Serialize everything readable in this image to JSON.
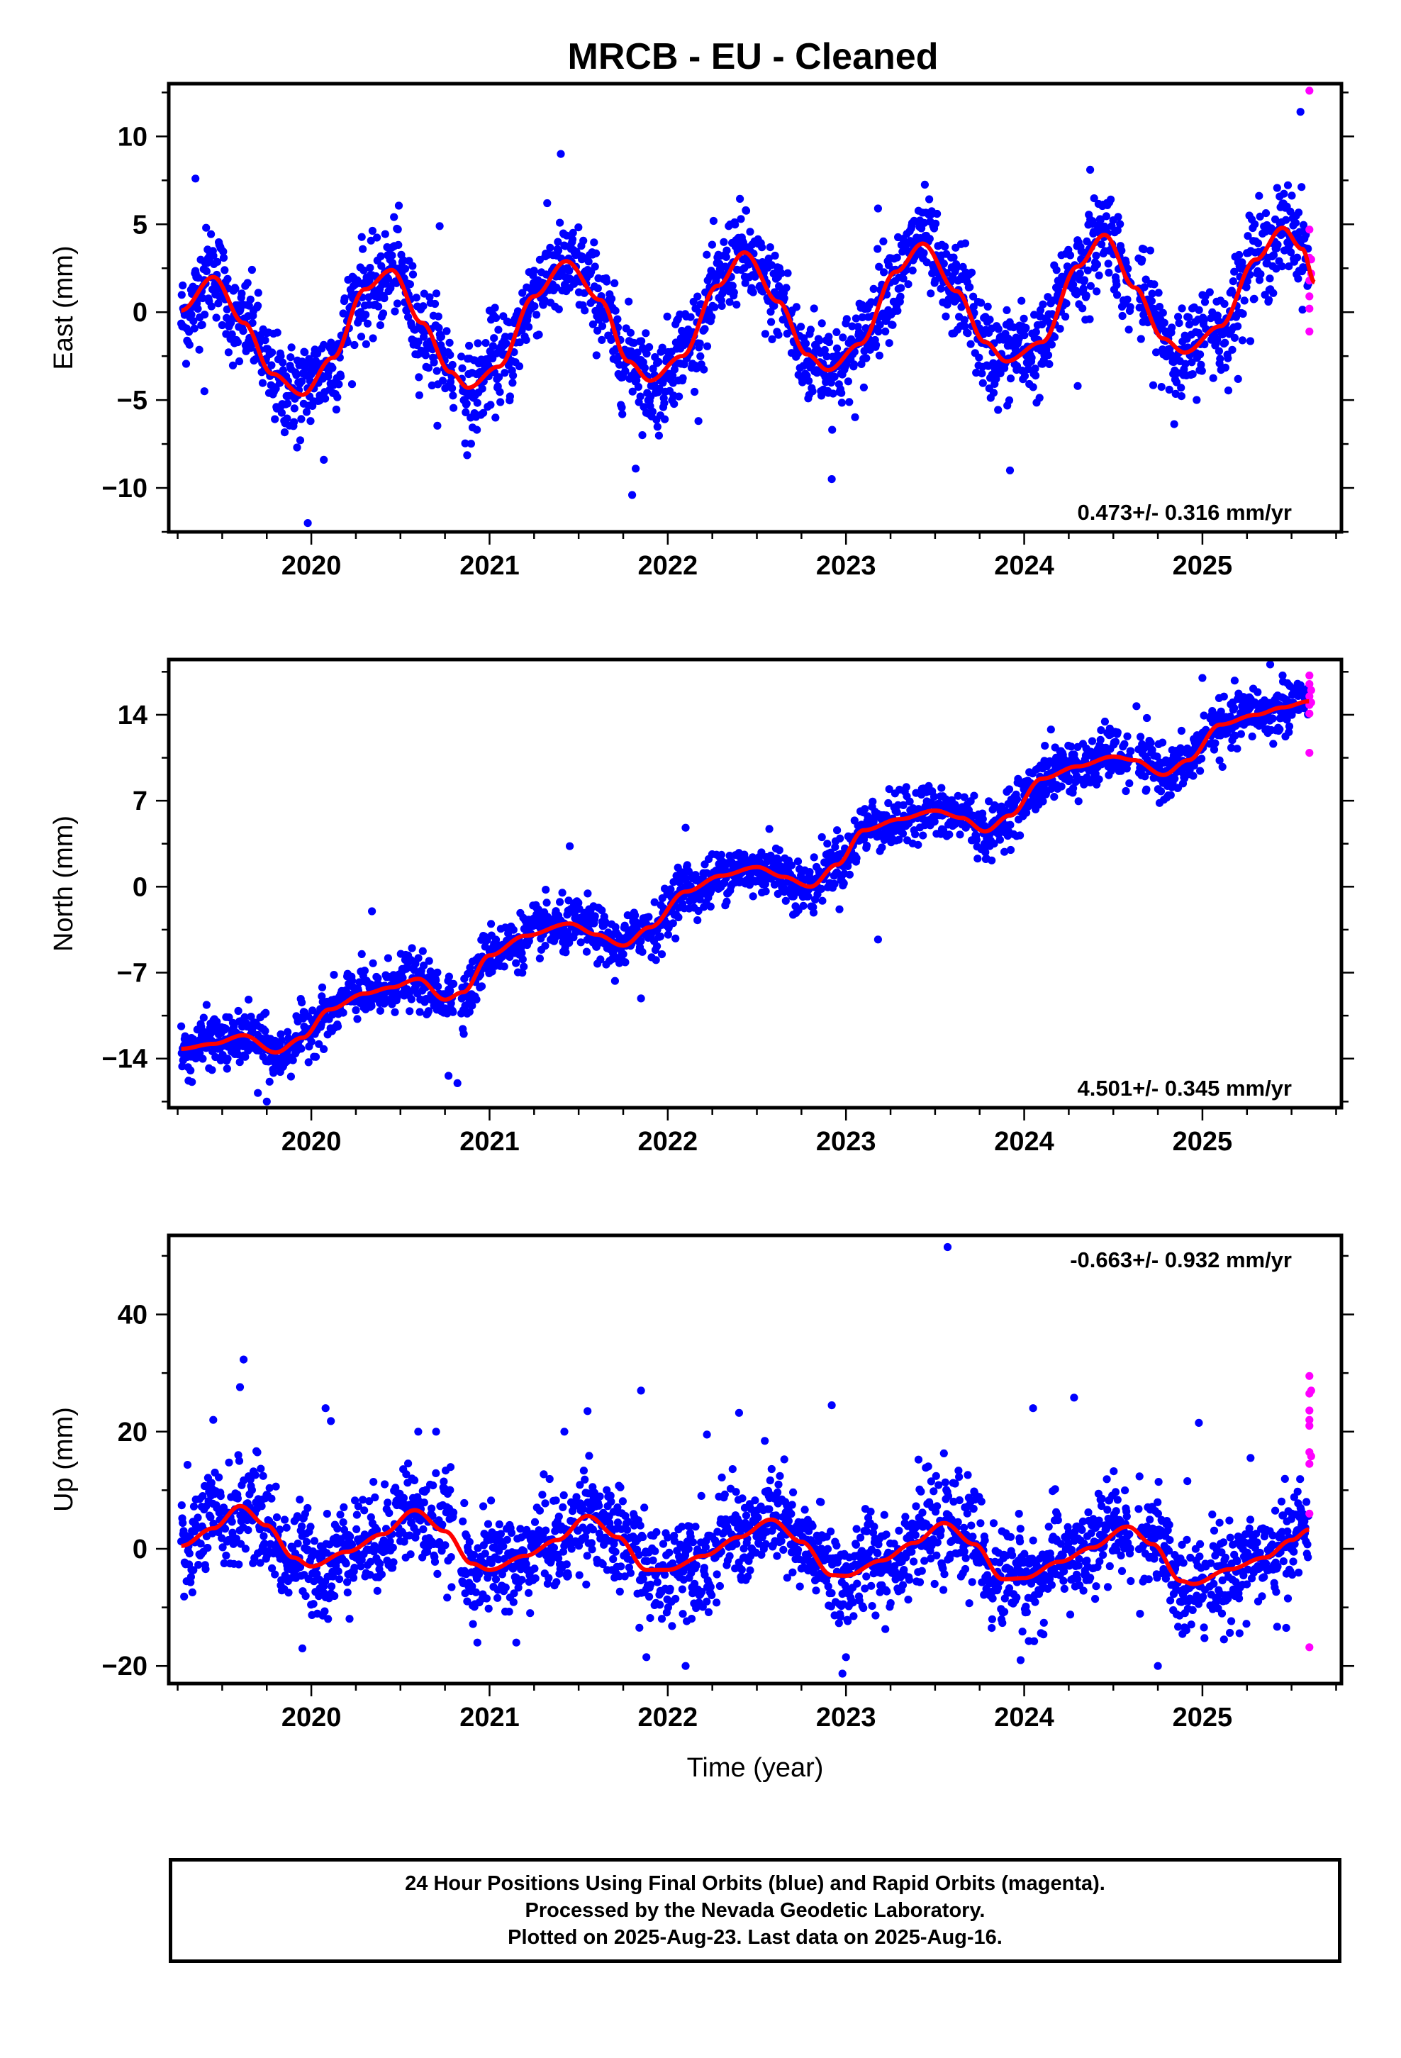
{
  "title": "MRCB  - EU - Cleaned",
  "colors": {
    "final": "#0000ff",
    "rapid": "#ff00ff",
    "model": "#ff0000"
  },
  "footer": {
    "line1": "24 Hour Positions Using Final Orbits (blue) and Rapid Orbits (magenta).",
    "line2": "Processed by the Nevada Geodetic Laboratory.",
    "line3": "Plotted on 2025-Aug-23. Last data on 2025-Aug-16."
  },
  "chart_data": [
    {
      "type": "scatter",
      "name": "east",
      "ylabel": "East (mm)",
      "xlabel": "",
      "xlim": [
        2019.2,
        2025.78
      ],
      "ylim": [
        -12.5,
        13.0
      ],
      "yticks": [
        -10,
        -5,
        0,
        5,
        10
      ],
      "yticklabels": [
        "−10",
        "−5",
        "0",
        "5",
        "10"
      ],
      "xticks": [
        2020,
        2021,
        2022,
        2023,
        2024,
        2025
      ],
      "xticklabels": [
        "2020",
        "2021",
        "2022",
        "2023",
        "2024",
        "2025"
      ],
      "rate_text": "0.473+/- 0.316 mm/yr",
      "rate_position": "bottom-right",
      "model_knots": [
        [
          2019.27,
          0.1
        ],
        [
          2019.45,
          2.0
        ],
        [
          2019.62,
          -0.6
        ],
        [
          2019.78,
          -3.5
        ],
        [
          2019.95,
          -4.7
        ],
        [
          2020.12,
          -2.6
        ],
        [
          2020.3,
          1.3
        ],
        [
          2020.45,
          2.4
        ],
        [
          2020.62,
          -0.6
        ],
        [
          2020.78,
          -3.4
        ],
        [
          2020.88,
          -4.3
        ],
        [
          2021.05,
          -3.1
        ],
        [
          2021.25,
          0.9
        ],
        [
          2021.43,
          2.9
        ],
        [
          2021.62,
          0.7
        ],
        [
          2021.78,
          -2.8
        ],
        [
          2021.9,
          -3.9
        ],
        [
          2022.08,
          -2.5
        ],
        [
          2022.28,
          1.5
        ],
        [
          2022.43,
          3.4
        ],
        [
          2022.62,
          0.6
        ],
        [
          2022.78,
          -2.4
        ],
        [
          2022.9,
          -3.3
        ],
        [
          2023.08,
          -1.8
        ],
        [
          2023.28,
          2.3
        ],
        [
          2023.43,
          3.9
        ],
        [
          2023.62,
          1.2
        ],
        [
          2023.78,
          -1.7
        ],
        [
          2023.9,
          -2.8
        ],
        [
          2024.1,
          -1.7
        ],
        [
          2024.3,
          2.6
        ],
        [
          2024.45,
          4.4
        ],
        [
          2024.62,
          1.4
        ],
        [
          2024.78,
          -1.5
        ],
        [
          2024.9,
          -2.3
        ],
        [
          2025.1,
          -0.8
        ],
        [
          2025.3,
          3.0
        ],
        [
          2025.45,
          4.8
        ],
        [
          2025.56,
          3.6
        ],
        [
          2025.63,
          1.7
        ]
      ],
      "scatter_sigma": 1.3,
      "outliers_final": [
        [
          2019.35,
          7.6
        ],
        [
          2019.4,
          -4.5
        ],
        [
          2019.92,
          -7.7
        ],
        [
          2019.98,
          -12.0
        ],
        [
          2020.07,
          -8.4
        ],
        [
          2020.72,
          4.9
        ],
        [
          2021.4,
          9.0
        ],
        [
          2021.8,
          -10.4
        ],
        [
          2021.82,
          -8.9
        ],
        [
          2022.92,
          -9.5
        ],
        [
          2023.18,
          5.9
        ],
        [
          2023.92,
          -9.0
        ],
        [
          2024.3,
          -4.2
        ],
        [
          2024.37,
          8.1
        ],
        [
          2025.2,
          -3.8
        ],
        [
          2025.55,
          11.4
        ]
      ],
      "rapid_points": [
        [
          2025.6,
          12.6
        ],
        [
          2025.6,
          4.7
        ],
        [
          2025.6,
          3.1
        ],
        [
          2025.6,
          1.8
        ],
        [
          2025.6,
          0.9
        ],
        [
          2025.6,
          0.2
        ],
        [
          2025.6,
          -1.1
        ],
        [
          2025.61,
          3.0
        ],
        [
          2025.61,
          2.2
        ]
      ]
    },
    {
      "type": "scatter",
      "name": "north",
      "ylabel": "North (mm)",
      "xlabel": "",
      "xlim": [
        2019.2,
        2025.78
      ],
      "ylim": [
        -18.0,
        18.5
      ],
      "yticks": [
        -14,
        -7,
        0,
        7,
        14
      ],
      "yticklabels": [
        "−14",
        "−7",
        "0",
        "7",
        "14"
      ],
      "xticks": [
        2020,
        2021,
        2022,
        2023,
        2024,
        2025
      ],
      "xticklabels": [
        "2020",
        "2021",
        "2022",
        "2023",
        "2024",
        "2025"
      ],
      "rate_text": "4.501+/- 0.345 mm/yr",
      "rate_position": "bottom-right",
      "model_knots": [
        [
          2019.27,
          -13.2
        ],
        [
          2019.45,
          -12.8
        ],
        [
          2019.62,
          -12.1
        ],
        [
          2019.8,
          -13.5
        ],
        [
          2019.95,
          -12.3
        ],
        [
          2020.1,
          -10.0
        ],
        [
          2020.3,
          -8.7
        ],
        [
          2020.45,
          -8.2
        ],
        [
          2020.6,
          -7.5
        ],
        [
          2020.75,
          -9.2
        ],
        [
          2020.85,
          -8.6
        ],
        [
          2021.0,
          -5.6
        ],
        [
          2021.2,
          -4.0
        ],
        [
          2021.45,
          -3.0
        ],
        [
          2021.6,
          -3.9
        ],
        [
          2021.75,
          -4.8
        ],
        [
          2021.9,
          -3.3
        ],
        [
          2022.1,
          -0.4
        ],
        [
          2022.3,
          0.9
        ],
        [
          2022.5,
          1.6
        ],
        [
          2022.65,
          0.8
        ],
        [
          2022.8,
          0.0
        ],
        [
          2022.95,
          1.8
        ],
        [
          2023.1,
          4.6
        ],
        [
          2023.3,
          5.5
        ],
        [
          2023.5,
          6.2
        ],
        [
          2023.65,
          5.6
        ],
        [
          2023.78,
          4.5
        ],
        [
          2023.92,
          5.8
        ],
        [
          2024.1,
          8.8
        ],
        [
          2024.3,
          9.8
        ],
        [
          2024.5,
          10.6
        ],
        [
          2024.62,
          10.3
        ],
        [
          2024.78,
          9.1
        ],
        [
          2024.92,
          10.3
        ],
        [
          2025.1,
          13.2
        ],
        [
          2025.3,
          14.0
        ],
        [
          2025.45,
          14.6
        ],
        [
          2025.6,
          15.1
        ]
      ],
      "scatter_sigma": 1.05,
      "outliers_final": [
        [
          2019.7,
          -16.8
        ],
        [
          2019.75,
          -17.5
        ],
        [
          2020.34,
          -2.0
        ],
        [
          2020.77,
          -15.4
        ],
        [
          2020.82,
          -16.0
        ],
        [
          2021.45,
          3.3
        ],
        [
          2021.85,
          -9.1
        ],
        [
          2022.1,
          4.8
        ],
        [
          2022.57,
          4.7
        ],
        [
          2022.95,
          4.6
        ],
        [
          2023.18,
          -4.3
        ],
        [
          2023.3,
          7.9
        ],
        [
          2024.15,
          12.8
        ],
        [
          2024.63,
          14.7
        ],
        [
          2025.0,
          17.0
        ],
        [
          2025.38,
          18.1
        ],
        [
          2025.45,
          17.2
        ]
      ],
      "rapid_points": [
        [
          2025.6,
          17.2
        ],
        [
          2025.6,
          16.5
        ],
        [
          2025.6,
          15.5
        ],
        [
          2025.6,
          14.8
        ],
        [
          2025.6,
          14.1
        ],
        [
          2025.6,
          10.9
        ],
        [
          2025.61,
          16.0
        ],
        [
          2025.61,
          15.0
        ]
      ]
    },
    {
      "type": "scatter",
      "name": "up",
      "ylabel": "Up (mm)",
      "xlabel": "Time (year)",
      "xlim": [
        2019.2,
        2025.78
      ],
      "ylim": [
        -23.0,
        53.5
      ],
      "yticks": [
        -20,
        0,
        20,
        40
      ],
      "yticklabels": [
        "−20",
        "0",
        "20",
        "40"
      ],
      "xticks": [
        2020,
        2021,
        2022,
        2023,
        2024,
        2025
      ],
      "xticklabels": [
        "2020",
        "2021",
        "2022",
        "2023",
        "2024",
        "2025"
      ],
      "rate_text": "-0.663+/- 0.932 mm/yr",
      "rate_position": "top-right",
      "model_knots": [
        [
          2019.27,
          0.5
        ],
        [
          2019.45,
          3.5
        ],
        [
          2019.6,
          7.3
        ],
        [
          2019.75,
          4.0
        ],
        [
          2019.9,
          -1.5
        ],
        [
          2020.0,
          -3.0
        ],
        [
          2020.2,
          -0.5
        ],
        [
          2020.4,
          2.5
        ],
        [
          2020.58,
          6.6
        ],
        [
          2020.75,
          3.0
        ],
        [
          2020.9,
          -2.5
        ],
        [
          2021.0,
          -3.6
        ],
        [
          2021.2,
          -1.2
        ],
        [
          2021.38,
          1.5
        ],
        [
          2021.55,
          5.6
        ],
        [
          2021.72,
          2.0
        ],
        [
          2021.88,
          -3.6
        ],
        [
          2022.0,
          -3.6
        ],
        [
          2022.2,
          -1.2
        ],
        [
          2022.4,
          2.0
        ],
        [
          2022.58,
          5.0
        ],
        [
          2022.75,
          1.2
        ],
        [
          2022.92,
          -4.5
        ],
        [
          2023.0,
          -4.6
        ],
        [
          2023.2,
          -2.0
        ],
        [
          2023.38,
          1.0
        ],
        [
          2023.55,
          4.4
        ],
        [
          2023.72,
          0.8
        ],
        [
          2023.88,
          -5.2
        ],
        [
          2024.0,
          -5.0
        ],
        [
          2024.2,
          -2.2
        ],
        [
          2024.38,
          0.2
        ],
        [
          2024.58,
          3.8
        ],
        [
          2024.72,
          0.8
        ],
        [
          2024.88,
          -5.5
        ],
        [
          2024.95,
          -6.0
        ],
        [
          2025.15,
          -3.5
        ],
        [
          2025.35,
          -1.5
        ],
        [
          2025.5,
          1.5
        ],
        [
          2025.6,
          3.3
        ]
      ],
      "scatter_sigma": 4.2,
      "outliers_final": [
        [
          2019.45,
          22.0
        ],
        [
          2019.62,
          32.3
        ],
        [
          2019.6,
          27.6
        ],
        [
          2019.95,
          -17.0
        ],
        [
          2020.08,
          24.0
        ],
        [
          2020.11,
          21.8
        ],
        [
          2020.6,
          20.0
        ],
        [
          2020.7,
          20.0
        ],
        [
          2021.15,
          -16.0
        ],
        [
          2021.42,
          20.0
        ],
        [
          2021.55,
          23.5
        ],
        [
          2021.85,
          27.0
        ],
        [
          2021.88,
          -18.5
        ],
        [
          2022.1,
          -20.0
        ],
        [
          2022.22,
          19.5
        ],
        [
          2022.4,
          23.2
        ],
        [
          2022.92,
          24.5
        ],
        [
          2022.98,
          -21.3
        ],
        [
          2023.0,
          -18.5
        ],
        [
          2023.57,
          51.5
        ],
        [
          2023.98,
          -19.0
        ],
        [
          2024.05,
          24.0
        ],
        [
          2024.28,
          25.8
        ],
        [
          2024.75,
          -20.0
        ],
        [
          2024.98,
          21.5
        ],
        [
          2025.27,
          15.5
        ],
        [
          2025.47,
          -13.5
        ]
      ],
      "rapid_points": [
        [
          2025.6,
          29.5
        ],
        [
          2025.6,
          26.5
        ],
        [
          2025.6,
          23.6
        ],
        [
          2025.6,
          22.0
        ],
        [
          2025.6,
          21.0
        ],
        [
          2025.6,
          16.5
        ],
        [
          2025.6,
          14.5
        ],
        [
          2025.6,
          6.0
        ],
        [
          2025.6,
          -16.8
        ],
        [
          2025.61,
          27.0
        ],
        [
          2025.61,
          15.8
        ]
      ]
    }
  ]
}
